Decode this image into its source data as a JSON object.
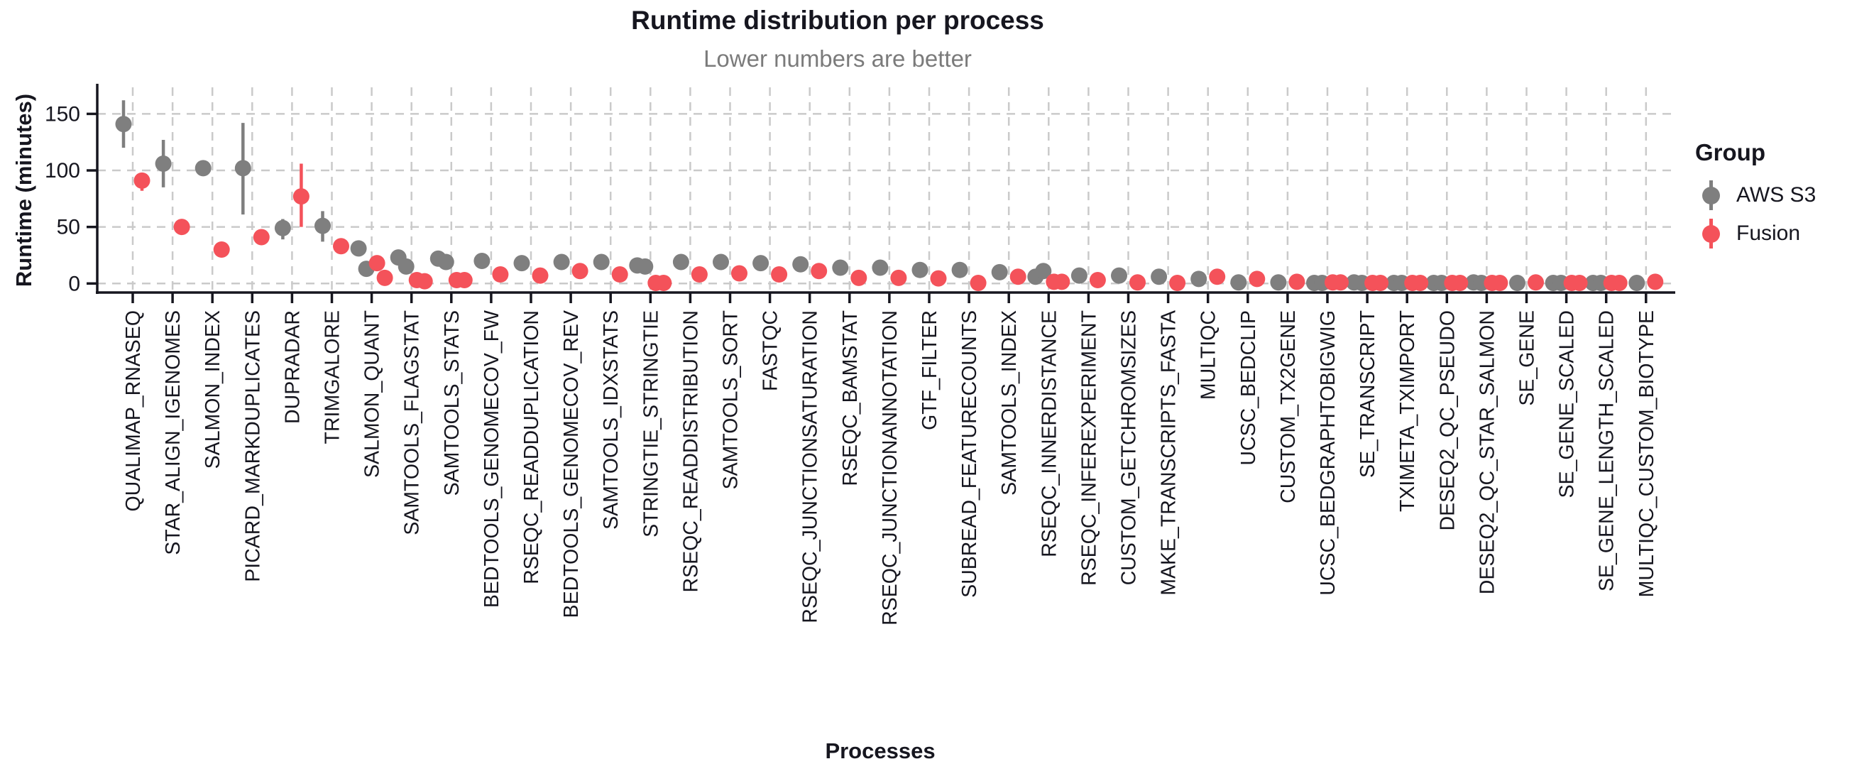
{
  "title": "Runtime distribution per process",
  "subtitle": "Lower numbers are better",
  "legend": {
    "title": "Group",
    "items": [
      {
        "label": "AWS S3",
        "color": "#7f7f7f"
      },
      {
        "label": "Fusion",
        "color": "#f4525a"
      }
    ]
  },
  "style": {
    "axis_color": "#16161f",
    "grid_color": "#cacaca",
    "text_color": "#16161f",
    "subtitle_color": "#7b7b7b",
    "background": "#ffffff"
  },
  "chart_data": {
    "type": "scatter",
    "title": "Runtime distribution per process",
    "subtitle": "Lower numbers are better",
    "xlabel": "Processes",
    "ylabel": "Runtime (minutes)",
    "ylim": [
      0,
      175
    ],
    "yticks": [
      0,
      50,
      100,
      150
    ],
    "grid": "dashed-both",
    "legend_position": "right",
    "point_unit": "minutes",
    "categories": [
      "QUALIMAP_RNASEQ",
      "STAR_ALIGN_IGENOMES",
      "SALMON_INDEX",
      "PICARD_MARKDUPLICATES",
      "DUPRADAR",
      "TRIMGALORE",
      "SALMON_QUANT",
      "SAMTOOLS_FLAGSTAT",
      "SAMTOOLS_STATS",
      "BEDTOOLS_GENOMECOV_FW",
      "RSEQC_READDUPLICATION",
      "BEDTOOLS_GENOMECOV_REV",
      "SAMTOOLS_IDXSTATS",
      "STRINGTIE_STRINGTIE",
      "RSEQC_READDISTRIBUTION",
      "SAMTOOLS_SORT",
      "FASTQC",
      "RSEQC_JUNCTIONSATURATION",
      "RSEQC_BAMSTAT",
      "RSEQC_JUNCTIONANNOTATION",
      "GTF_FILTER",
      "SUBREAD_FEATURECOUNTS",
      "SAMTOOLS_INDEX",
      "RSEQC_INNERDISTANCE",
      "RSEQC_INFEREXPERIMENT",
      "CUSTOM_GETCHROMSIZES",
      "MAKE_TRANSCRIPTS_FASTA",
      "MULTIQC",
      "UCSC_BEDCLIP",
      "CUSTOM_TX2GENE",
      "UCSC_BEDGRAPHTOBIGWIG",
      "SE_TRANSCRIPT",
      "TXIMETA_TXIMPORT",
      "DESEQ2_QC_PSEUDO",
      "DESEQ2_QC_STAR_SALMON",
      "SE_GENE",
      "SE_GENE_SCALED",
      "SE_GENE_LENGTH_SCALED",
      "MULTIQC_CUSTOM_BIOTYPE"
    ],
    "series": [
      {
        "name": "AWS S3",
        "color": "#7f7f7f",
        "points": [
          {
            "values": [
              141
            ],
            "err": [
              120,
              162
            ]
          },
          {
            "values": [
              106
            ],
            "err": [
              85,
              127
            ]
          },
          {
            "values": [
              102
            ]
          },
          {
            "values": [
              102
            ],
            "err": [
              61,
              142
            ]
          },
          {
            "values": [
              49
            ],
            "err": [
              39,
              57
            ]
          },
          {
            "values": [
              51
            ],
            "err": [
              37,
              64
            ]
          },
          {
            "values": [
              31,
              13
            ]
          },
          {
            "values": [
              23,
              15
            ],
            "err": [
              11,
              26
            ]
          },
          {
            "values": [
              22,
              19
            ]
          },
          {
            "values": [
              20
            ]
          },
          {
            "values": [
              18
            ]
          },
          {
            "values": [
              19
            ]
          },
          {
            "values": [
              19
            ]
          },
          {
            "values": [
              16,
              15
            ]
          },
          {
            "values": [
              19
            ]
          },
          {
            "values": [
              19
            ]
          },
          {
            "values": [
              18
            ],
            "err": [
              13,
              23
            ]
          },
          {
            "values": [
              17
            ]
          },
          {
            "values": [
              14
            ]
          },
          {
            "values": [
              14
            ]
          },
          {
            "values": [
              12
            ]
          },
          {
            "values": [
              12
            ]
          },
          {
            "values": [
              10
            ]
          },
          {
            "values": [
              6,
              11
            ]
          },
          {
            "values": [
              7
            ]
          },
          {
            "values": [
              7
            ]
          },
          {
            "values": [
              6
            ]
          },
          {
            "values": [
              4
            ]
          },
          {
            "values": [
              1
            ]
          },
          {
            "values": [
              1
            ]
          },
          {
            "values": [
              0.5,
              0.5
            ]
          },
          {
            "values": [
              1,
              0.5
            ]
          },
          {
            "values": [
              0.5,
              0.5
            ]
          },
          {
            "values": [
              0.5,
              0.5
            ]
          },
          {
            "values": [
              1,
              0.5
            ]
          },
          {
            "values": [
              0.5
            ]
          },
          {
            "values": [
              0.5,
              0.5
            ]
          },
          {
            "values": [
              0.5,
              0.5
            ]
          },
          {
            "values": [
              0.5
            ]
          }
        ]
      },
      {
        "name": "Fusion",
        "color": "#f4525a",
        "points": [
          {
            "values": [
              91
            ],
            "err": [
              82,
              96
            ]
          },
          {
            "values": [
              50
            ]
          },
          {
            "values": [
              30
            ]
          },
          {
            "values": [
              41
            ]
          },
          {
            "values": [
              77
            ],
            "err": [
              50,
              106
            ]
          },
          {
            "values": [
              33
            ]
          },
          {
            "values": [
              18,
              5
            ]
          },
          {
            "values": [
              3,
              2
            ]
          },
          {
            "values": [
              3,
              3
            ]
          },
          {
            "values": [
              8
            ]
          },
          {
            "values": [
              7
            ]
          },
          {
            "values": [
              11
            ]
          },
          {
            "values": [
              8
            ]
          },
          {
            "values": [
              0.5,
              0.5
            ]
          },
          {
            "values": [
              8
            ]
          },
          {
            "values": [
              9
            ]
          },
          {
            "values": [
              8
            ]
          },
          {
            "values": [
              11
            ]
          },
          {
            "values": [
              5
            ]
          },
          {
            "values": [
              5
            ]
          },
          {
            "values": [
              4.5
            ]
          },
          {
            "values": [
              0.5
            ]
          },
          {
            "values": [
              6
            ]
          },
          {
            "values": [
              1.5,
              1.5
            ]
          },
          {
            "values": [
              3
            ]
          },
          {
            "values": [
              1
            ]
          },
          {
            "values": [
              0.5
            ]
          },
          {
            "values": [
              6
            ]
          },
          {
            "values": [
              4
            ]
          },
          {
            "values": [
              1.5
            ]
          },
          {
            "values": [
              1,
              1
            ]
          },
          {
            "values": [
              0.5,
              0.5
            ]
          },
          {
            "values": [
              0.5,
              0.5
            ]
          },
          {
            "values": [
              0.5,
              0.5
            ]
          },
          {
            "values": [
              0.5,
              0.5
            ]
          },
          {
            "values": [
              1
            ]
          },
          {
            "values": [
              0.5,
              0.5
            ]
          },
          {
            "values": [
              0.5,
              0.5
            ]
          },
          {
            "values": [
              1.5
            ]
          }
        ]
      }
    ]
  }
}
